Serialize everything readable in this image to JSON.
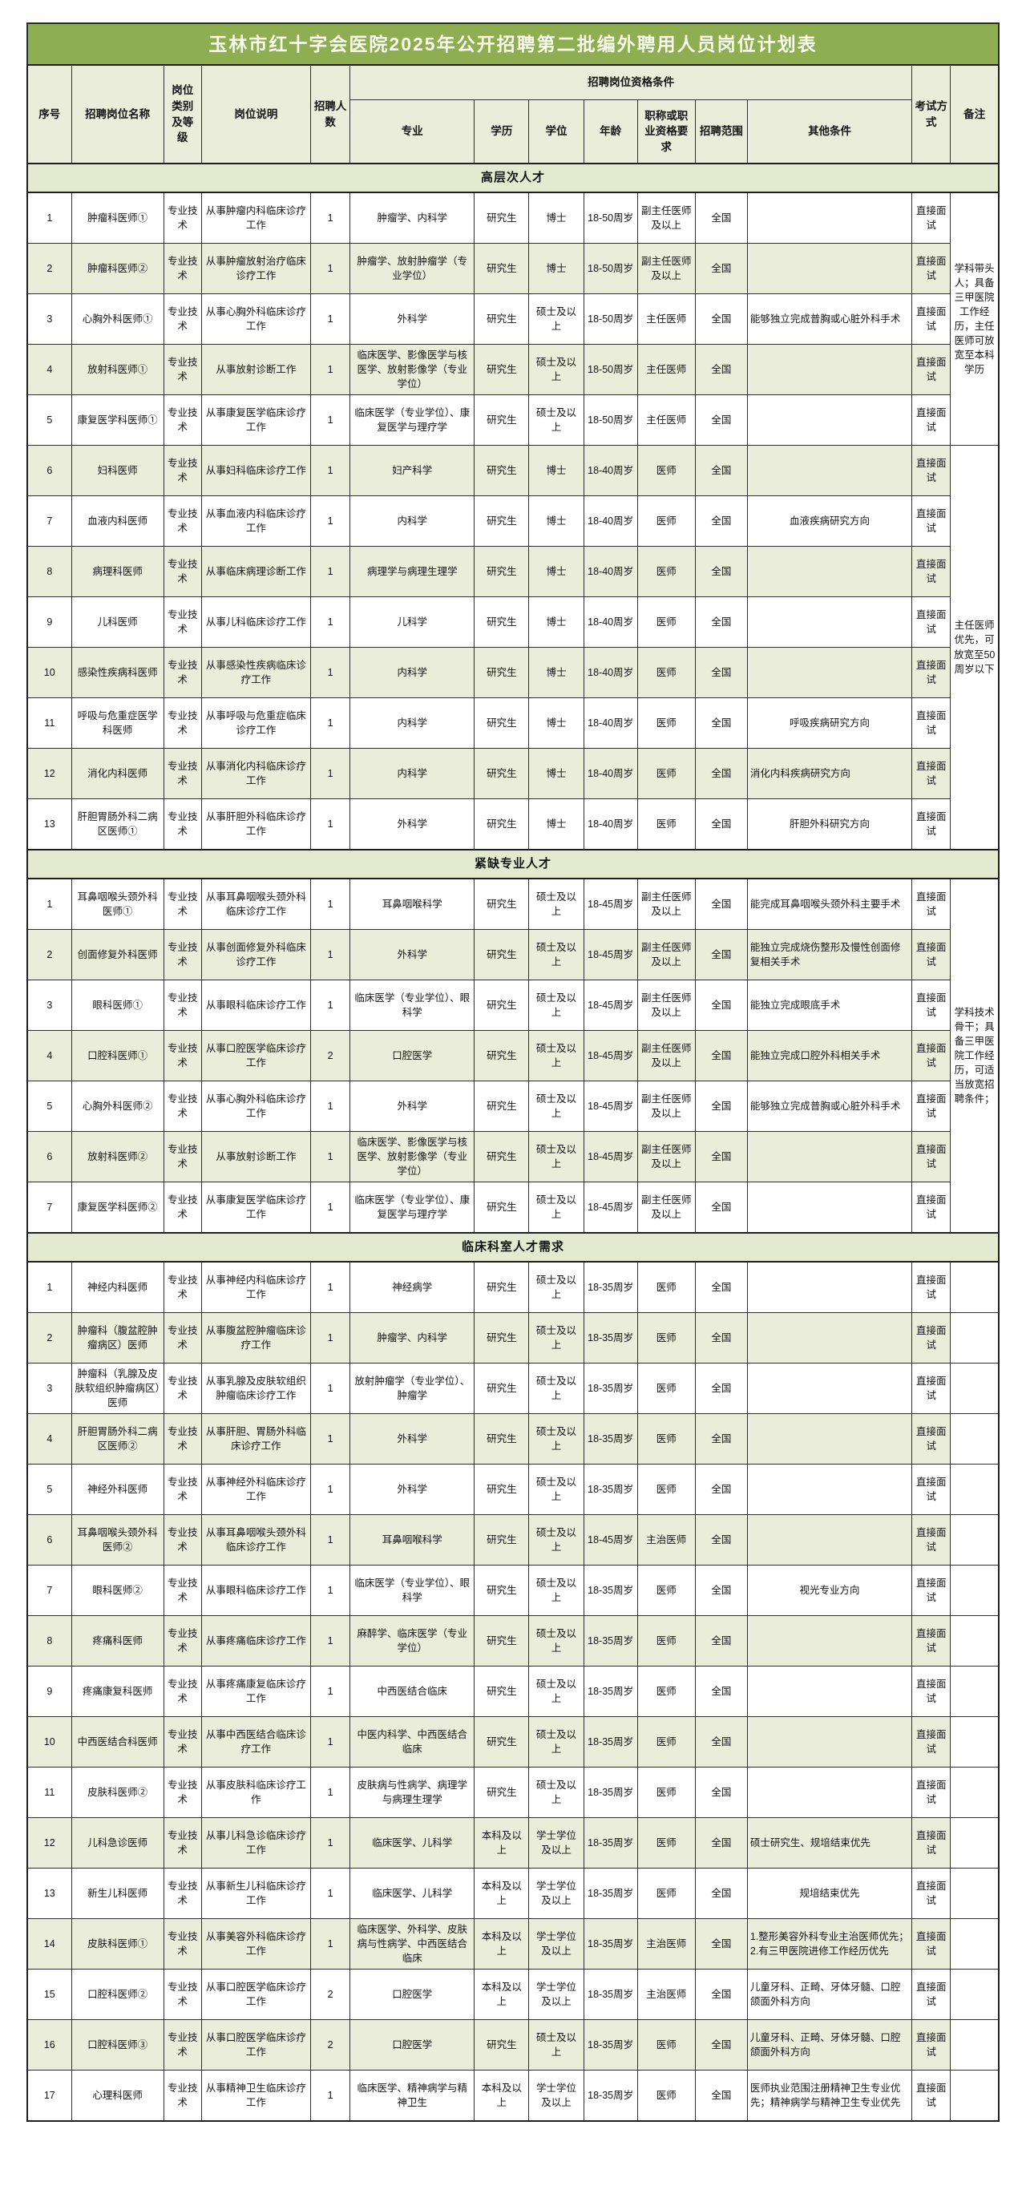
{
  "title": "玉林市红十字会医院2025年公开招聘第二批编外聘用人员岗位计划表",
  "header": {
    "seq": "序号",
    "name": "招聘岗位名称",
    "category": "岗位类别及等级",
    "desc": "岗位说明",
    "count": "招聘人数",
    "qual_group": "招聘岗位资格条件",
    "major": "专业",
    "edu": "学历",
    "degree": "学位",
    "age": "年龄",
    "title_req": "职称或职业资格要求",
    "scope": "招聘范围",
    "other": "其他条件",
    "exam": "考试方式",
    "remark": "备注"
  },
  "column_keys": [
    "seq",
    "name",
    "category",
    "desc",
    "count",
    "major",
    "edu",
    "degree",
    "age",
    "title_req",
    "scope",
    "other",
    "exam"
  ],
  "sections": [
    {
      "name": "高层次人才",
      "remark_merges": [
        {
          "start": 1,
          "span": 5,
          "text": "学科带头人；具备三甲医院工作经历，主任医师可放宽至本科学历"
        },
        {
          "start": 6,
          "span": 8,
          "text": "主任医师优先，可放宽至50周岁以下"
        }
      ],
      "rows": [
        [
          "1",
          "肿瘤科医师①",
          "专业技术",
          "从事肿瘤内科临床诊疗工作",
          "1",
          "肿瘤学、内科学",
          "研究生",
          "博士",
          "18-50周岁",
          "副主任医师及以上",
          "全国",
          "",
          "直接面试"
        ],
        [
          "2",
          "肿瘤科医师②",
          "专业技术",
          "从事肿瘤放射治疗临床诊疗工作",
          "1",
          "肿瘤学、放射肿瘤学（专业学位）",
          "研究生",
          "博士",
          "18-50周岁",
          "副主任医师及以上",
          "全国",
          "",
          "直接面试"
        ],
        [
          "3",
          "心胸外科医师①",
          "专业技术",
          "从事心胸外科临床诊疗工作",
          "1",
          "外科学",
          "研究生",
          "硕士及以上",
          "18-50周岁",
          "主任医师",
          "全国",
          "能够独立完成普胸或心脏外科手术",
          "直接面试"
        ],
        [
          "4",
          "放射科医师①",
          "专业技术",
          "从事放射诊断工作",
          "1",
          "临床医学、影像医学与核医学、放射影像学（专业学位）",
          "研究生",
          "硕士及以上",
          "18-50周岁",
          "主任医师",
          "全国",
          "",
          "直接面试"
        ],
        [
          "5",
          "康复医学科医师①",
          "专业技术",
          "从事康复医学临床诊疗工作",
          "1",
          "临床医学（专业学位）、康复医学与理疗学",
          "研究生",
          "硕士及以上",
          "18-50周岁",
          "主任医师",
          "全国",
          "",
          "直接面试"
        ],
        [
          "6",
          "妇科医师",
          "专业技术",
          "从事妇科临床诊疗工作",
          "1",
          "妇产科学",
          "研究生",
          "博士",
          "18-40周岁",
          "医师",
          "全国",
          "",
          "直接面试"
        ],
        [
          "7",
          "血液内科医师",
          "专业技术",
          "从事血液内科临床诊疗工作",
          "1",
          "内科学",
          "研究生",
          "博士",
          "18-40周岁",
          "医师",
          "全国",
          "血液疾病研究方向",
          "直接面试"
        ],
        [
          "8",
          "病理科医师",
          "专业技术",
          "从事临床病理诊断工作",
          "1",
          "病理学与病理生理学",
          "研究生",
          "博士",
          "18-40周岁",
          "医师",
          "全国",
          "",
          "直接面试"
        ],
        [
          "9",
          "儿科医师",
          "专业技术",
          "从事儿科临床诊疗工作",
          "1",
          "儿科学",
          "研究生",
          "博士",
          "18-40周岁",
          "医师",
          "全国",
          "",
          "直接面试"
        ],
        [
          "10",
          "感染性疾病科医师",
          "专业技术",
          "从事感染性疾病临床诊疗工作",
          "1",
          "内科学",
          "研究生",
          "博士",
          "18-40周岁",
          "医师",
          "全国",
          "",
          "直接面试"
        ],
        [
          "11",
          "呼吸与危重症医学科医师",
          "专业技术",
          "从事呼吸与危重症临床诊疗工作",
          "1",
          "内科学",
          "研究生",
          "博士",
          "18-40周岁",
          "医师",
          "全国",
          "呼吸疾病研究方向",
          "直接面试"
        ],
        [
          "12",
          "消化内科医师",
          "专业技术",
          "从事消化内科临床诊疗工作",
          "1",
          "内科学",
          "研究生",
          "博士",
          "18-40周岁",
          "医师",
          "全国",
          "消化内科疾病研究方向",
          "直接面试"
        ],
        [
          "13",
          "肝胆胃肠外科二病区医师①",
          "专业技术",
          "从事肝胆外科临床诊疗工作",
          "1",
          "外科学",
          "研究生",
          "博士",
          "18-40周岁",
          "医师",
          "全国",
          "肝胆外科研究方向",
          "直接面试"
        ]
      ]
    },
    {
      "name": "紧缺专业人才",
      "remark_merges": [
        {
          "start": 1,
          "span": 7,
          "text": "学科技术骨干；具备三甲医院工作经历，可适当放宽招聘条件；"
        }
      ],
      "rows": [
        [
          "1",
          "耳鼻咽喉头颈外科医师①",
          "专业技术",
          "从事耳鼻咽喉头颈外科临床诊疗工作",
          "1",
          "耳鼻咽喉科学",
          "研究生",
          "硕士及以上",
          "18-45周岁",
          "副主任医师及以上",
          "全国",
          "能完成耳鼻咽喉头颈外科主要手术",
          "直接面试"
        ],
        [
          "2",
          "创面修复外科医师",
          "专业技术",
          "从事创面修复外科临床诊疗工作",
          "1",
          "外科学",
          "研究生",
          "硕士及以上",
          "18-45周岁",
          "副主任医师及以上",
          "全国",
          "能独立完成烧伤整形及慢性创面修复相关手术",
          "直接面试"
        ],
        [
          "3",
          "眼科医师①",
          "专业技术",
          "从事眼科临床诊疗工作",
          "1",
          "临床医学（专业学位）、眼科学",
          "研究生",
          "硕士及以上",
          "18-45周岁",
          "副主任医师及以上",
          "全国",
          "能独立完成眼底手术",
          "直接面试"
        ],
        [
          "4",
          "口腔科医师①",
          "专业技术",
          "从事口腔医学临床诊疗工作",
          "2",
          "口腔医学",
          "研究生",
          "硕士及以上",
          "18-45周岁",
          "副主任医师及以上",
          "全国",
          "能独立完成口腔外科相关手术",
          "直接面试"
        ],
        [
          "5",
          "心胸外科医师②",
          "专业技术",
          "从事心胸外科临床诊疗工作",
          "1",
          "外科学",
          "研究生",
          "硕士及以上",
          "18-45周岁",
          "副主任医师及以上",
          "全国",
          "能够独立完成普胸或心脏外科手术",
          "直接面试"
        ],
        [
          "6",
          "放射科医师②",
          "专业技术",
          "从事放射诊断工作",
          "1",
          "临床医学、影像医学与核医学、放射影像学（专业学位）",
          "研究生",
          "硕士及以上",
          "18-45周岁",
          "副主任医师及以上",
          "全国",
          "",
          "直接面试"
        ],
        [
          "7",
          "康复医学科医师②",
          "专业技术",
          "从事康复医学临床诊疗工作",
          "1",
          "临床医学（专业学位）、康复医学与理疗学",
          "研究生",
          "硕士及以上",
          "18-45周岁",
          "副主任医师及以上",
          "全国",
          "",
          "直接面试"
        ]
      ]
    },
    {
      "name": "临床科室人才需求",
      "remark_merges": [],
      "rows": [
        [
          "1",
          "神经内科医师",
          "专业技术",
          "从事神经内科临床诊疗工作",
          "1",
          "神经病学",
          "研究生",
          "硕士及以上",
          "18-35周岁",
          "医师",
          "全国",
          "",
          "直接面试"
        ],
        [
          "2",
          "肿瘤科（腹盆腔肿瘤病区）医师",
          "专业技术",
          "从事腹盆腔肿瘤临床诊疗工作",
          "1",
          "肿瘤学、内科学",
          "研究生",
          "硕士及以上",
          "18-35周岁",
          "医师",
          "全国",
          "",
          "直接面试"
        ],
        [
          "3",
          "肿瘤科（乳腺及皮肤软组织肿瘤病区）医师",
          "专业技术",
          "从事乳腺及皮肤软组织肿瘤临床诊疗工作",
          "1",
          "放射肿瘤学（专业学位）、肿瘤学",
          "研究生",
          "硕士及以上",
          "18-35周岁",
          "医师",
          "全国",
          "",
          "直接面试"
        ],
        [
          "4",
          "肝胆胃肠外科二病区医师②",
          "专业技术",
          "从事肝胆、胃肠外科临床诊疗工作",
          "1",
          "外科学",
          "研究生",
          "硕士及以上",
          "18-35周岁",
          "医师",
          "全国",
          "",
          "直接面试"
        ],
        [
          "5",
          "神经外科医师",
          "专业技术",
          "从事神经外科临床诊疗工作",
          "1",
          "外科学",
          "研究生",
          "硕士及以上",
          "18-35周岁",
          "医师",
          "全国",
          "",
          "直接面试"
        ],
        [
          "6",
          "耳鼻咽喉头颈外科医师②",
          "专业技术",
          "从事耳鼻咽喉头颈外科临床诊疗工作",
          "1",
          "耳鼻咽喉科学",
          "研究生",
          "硕士及以上",
          "18-45周岁",
          "主治医师",
          "全国",
          "",
          "直接面试"
        ],
        [
          "7",
          "眼科医师②",
          "专业技术",
          "从事眼科临床诊疗工作",
          "1",
          "临床医学（专业学位）、眼科学",
          "研究生",
          "硕士及以上",
          "18-35周岁",
          "医师",
          "全国",
          "视光专业方向",
          "直接面试"
        ],
        [
          "8",
          "疼痛科医师",
          "专业技术",
          "从事疼痛临床诊疗工作",
          "1",
          "麻醉学、临床医学（专业学位）",
          "研究生",
          "硕士及以上",
          "18-35周岁",
          "医师",
          "全国",
          "",
          "直接面试"
        ],
        [
          "9",
          "疼痛康复科医师",
          "专业技术",
          "从事疼痛康复临床诊疗工作",
          "1",
          "中西医结合临床",
          "研究生",
          "硕士及以上",
          "18-35周岁",
          "医师",
          "全国",
          "",
          "直接面试"
        ],
        [
          "10",
          "中西医结合科医师",
          "专业技术",
          "从事中西医结合临床诊疗工作",
          "1",
          "中医内科学、中西医结合临床",
          "研究生",
          "硕士及以上",
          "18-35周岁",
          "医师",
          "全国",
          "",
          "直接面试"
        ],
        [
          "11",
          "皮肤科医师②",
          "专业技术",
          "从事皮肤科临床诊疗工作",
          "1",
          "皮肤病与性病学、病理学与病理生理学",
          "研究生",
          "硕士及以上",
          "18-35周岁",
          "医师",
          "全国",
          "",
          "直接面试"
        ],
        [
          "12",
          "儿科急诊医师",
          "专业技术",
          "从事儿科急诊临床诊疗工作",
          "1",
          "临床医学、儿科学",
          "本科及以上",
          "学士学位及以上",
          "18-35周岁",
          "医师",
          "全国",
          "硕士研究生、规培结束优先",
          "直接面试"
        ],
        [
          "13",
          "新生儿科医师",
          "专业技术",
          "从事新生儿科临床诊疗工作",
          "1",
          "临床医学、儿科学",
          "本科及以上",
          "学士学位及以上",
          "18-35周岁",
          "医师",
          "全国",
          "规培结束优先",
          "直接面试"
        ],
        [
          "14",
          "皮肤科医师①",
          "专业技术",
          "从事美容外科临床诊疗工作",
          "1",
          "临床医学、外科学、皮肤病与性病学、中西医结合临床",
          "本科及以上",
          "学士学位及以上",
          "18-35周岁",
          "主治医师",
          "全国",
          "1.整形美容外科专业主治医师优先；2.有三甲医院进修工作经历优先",
          "直接面试"
        ],
        [
          "15",
          "口腔科医师②",
          "专业技术",
          "从事口腔医学临床诊疗工作",
          "2",
          "口腔医学",
          "本科及以上",
          "学士学位及以上",
          "18-35周岁",
          "主治医师",
          "全国",
          "儿童牙科、正畸、牙体牙髓、口腔颌面外科方向",
          "直接面试"
        ],
        [
          "16",
          "口腔科医师③",
          "专业技术",
          "从事口腔医学临床诊疗工作",
          "2",
          "口腔医学",
          "研究生",
          "硕士及以上",
          "18-35周岁",
          "医师",
          "全国",
          "儿童牙科、正畸、牙体牙髓、口腔颌面外科方向",
          "直接面试"
        ],
        [
          "17",
          "心理科医师",
          "专业技术",
          "从事精神卫生临床诊疗工作",
          "1",
          "临床医学、精神病学与精神卫生",
          "本科及以上",
          "学士学位及以上",
          "18-35周岁",
          "医师",
          "全国",
          "医师执业范围注册精神卫生专业优先；精神病学与精神卫生专业优先",
          "直接面试"
        ]
      ]
    }
  ],
  "colors": {
    "title_bar_green": "#8fae52",
    "header_cell_green": "#e9edda",
    "section_bar_green": "#e3ead0",
    "row_stripe_green": "#e9edda",
    "border_dark": "#2f2f2f"
  }
}
